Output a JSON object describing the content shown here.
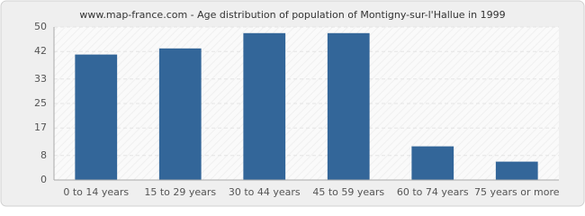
{
  "chart_data": {
    "type": "bar",
    "title": "www.map-france.com - Age distribution of population of Montigny-sur-l'Hallue in 1999",
    "categories": [
      "0 to 14 years",
      "15 to 29 years",
      "30 to 44 years",
      "45 to 59 years",
      "60 to 74 years",
      "75 years or more"
    ],
    "values": [
      41,
      43,
      48,
      48,
      11,
      6
    ],
    "color": "#336699",
    "ylim": [
      0,
      50
    ],
    "yticks": [
      0,
      8,
      17,
      25,
      33,
      42,
      50
    ],
    "grid": true
  }
}
